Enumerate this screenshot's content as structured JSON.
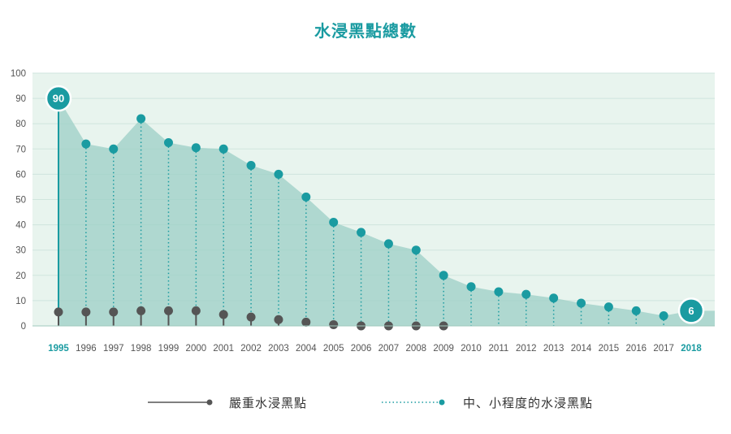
{
  "chart_data": {
    "type": "area",
    "title": "水浸黑點總數",
    "years": [
      "1995",
      "1996",
      "1997",
      "1998",
      "1999",
      "2000",
      "2001",
      "2002",
      "2003",
      "2004",
      "2005",
      "2006",
      "2007",
      "2008",
      "2009",
      "2010",
      "2011",
      "2012",
      "2013",
      "2014",
      "2015",
      "2016",
      "2017",
      "2018"
    ],
    "highlight_years": [
      "1995",
      "2018"
    ],
    "ylim": [
      0,
      100
    ],
    "yticks": [
      "0",
      "10",
      "20",
      "30",
      "40",
      "50",
      "60",
      "70",
      "80",
      "90",
      "100"
    ],
    "grid": true,
    "series": [
      {
        "name": "中、小程度的水浸黑點",
        "values": [
          90,
          72,
          70,
          82,
          72.5,
          70.5,
          70,
          63.5,
          60,
          51,
          41,
          37,
          32.5,
          30,
          20,
          15.5,
          13.5,
          12.5,
          11,
          9,
          7.5,
          6,
          4,
          6
        ]
      },
      {
        "name": "嚴重水浸黑點",
        "values": [
          5.5,
          5.5,
          5.5,
          6,
          6,
          6,
          4.5,
          3.5,
          2.5,
          1.5,
          0.5,
          0,
          0,
          0,
          0,
          null,
          null,
          null,
          null,
          null,
          null,
          null,
          null,
          null
        ]
      }
    ],
    "badges": [
      {
        "year": "1995",
        "label": "90"
      },
      {
        "year": "2018",
        "label": "6"
      }
    ],
    "legend": {
      "position": "bottom",
      "items": [
        {
          "label": "嚴重水浸黑點",
          "style": "solid"
        },
        {
          "label": "中、小程度的水浸黑點",
          "style": "dotted"
        }
      ]
    },
    "colors": {
      "accent": "#1a9ba1",
      "severe": "#555555",
      "area": "#9ccfc6",
      "plot_bg": "#e8f4ee",
      "grid": "#cfe5dd"
    }
  }
}
